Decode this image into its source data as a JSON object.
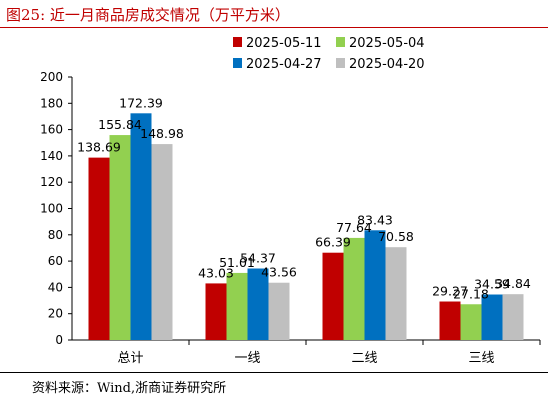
{
  "figure": {
    "title": "图25:  近一月商品房成交情况（万平方米）",
    "source": "资料来源：Wind,浙商证券研究所"
  },
  "chart_data": {
    "type": "bar",
    "categories": [
      "总计",
      "一线",
      "二线",
      "三线"
    ],
    "series": [
      {
        "name": "2025-05-11",
        "color": "#c00000",
        "values": [
          138.69,
          43.03,
          66.39,
          29.27
        ]
      },
      {
        "name": "2025-05-04",
        "color": "#92d050",
        "values": [
          155.84,
          51.01,
          77.64,
          27.18
        ]
      },
      {
        "name": "2025-04-27",
        "color": "#0070c0",
        "values": [
          172.39,
          54.37,
          83.43,
          34.59
        ]
      },
      {
        "name": "2025-04-20",
        "color": "#bfbfbf",
        "values": [
          148.98,
          43.56,
          70.58,
          34.84
        ]
      }
    ],
    "ylim": [
      0,
      200
    ],
    "yticks": [
      0,
      20,
      40,
      60,
      80,
      100,
      120,
      140,
      160,
      180,
      200
    ],
    "legend_position": "top-right",
    "grid": false
  }
}
